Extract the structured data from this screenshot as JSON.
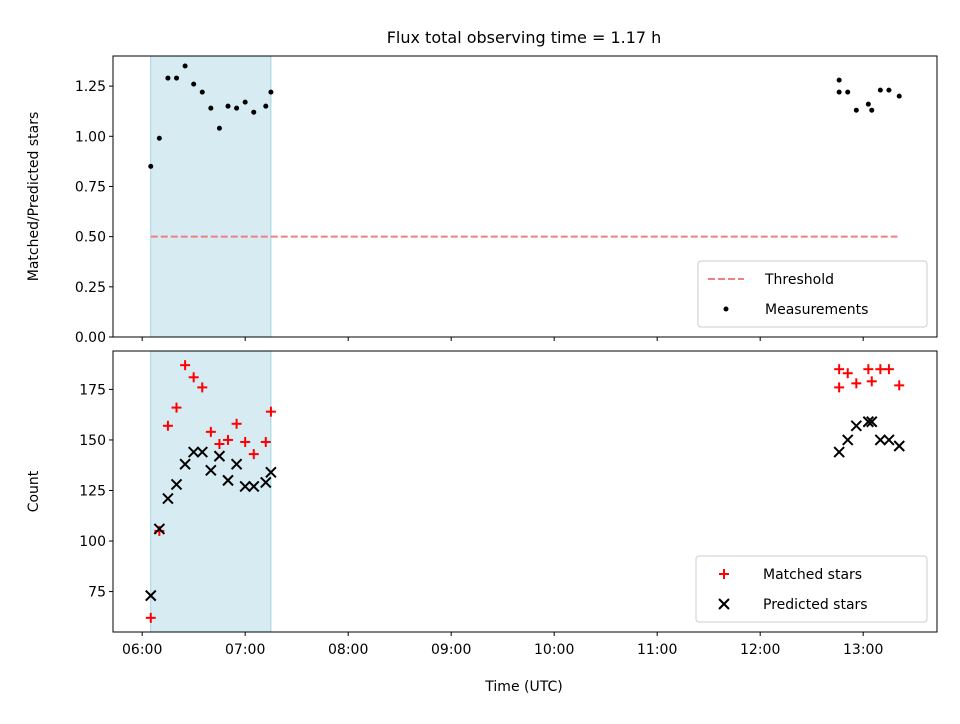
{
  "title": "Flux total observing time = 1.17 h",
  "xlabel": "Time (UTC)",
  "x_ticks": [
    "06:00",
    "07:00",
    "08:00",
    "09:00",
    "10:00",
    "11:00",
    "12:00",
    "13:00"
  ],
  "colors": {
    "threshold": "#f08080",
    "measurements": "#000000",
    "matched": "#ff0000",
    "predicted": "#000000",
    "shade": "#add8e6"
  },
  "chart_data": [
    {
      "type": "scatter",
      "ylabel": "Matched/Predicted stars",
      "xlim": [
        "05:43",
        "13:43"
      ],
      "ylim": [
        0,
        1.4
      ],
      "y_ticks": [
        "0.00",
        "0.25",
        "0.50",
        "0.75",
        "1.00",
        "1.25"
      ],
      "shaded_region": [
        "06:05",
        "07:15"
      ],
      "legend_position": "bottom-right",
      "threshold": {
        "name": "Threshold",
        "x": [
          "06:05",
          "13:20"
        ],
        "y": 0.5,
        "style": "dashed"
      },
      "series": [
        {
          "name": "Measurements",
          "points": [
            {
              "x": "06:05",
              "y": 0.85
            },
            {
              "x": "06:10",
              "y": 0.99
            },
            {
              "x": "06:15",
              "y": 1.29
            },
            {
              "x": "06:20",
              "y": 1.29
            },
            {
              "x": "06:25",
              "y": 1.35
            },
            {
              "x": "06:30",
              "y": 1.26
            },
            {
              "x": "06:35",
              "y": 1.22
            },
            {
              "x": "06:40",
              "y": 1.14
            },
            {
              "x": "06:45",
              "y": 1.04
            },
            {
              "x": "06:50",
              "y": 1.15
            },
            {
              "x": "06:55",
              "y": 1.14
            },
            {
              "x": "07:00",
              "y": 1.17
            },
            {
              "x": "07:05",
              "y": 1.12
            },
            {
              "x": "07:12",
              "y": 1.15
            },
            {
              "x": "07:15",
              "y": 1.22
            },
            {
              "x": "12:46",
              "y": 1.28
            },
            {
              "x": "12:46",
              "y": 1.22
            },
            {
              "x": "12:51",
              "y": 1.22
            },
            {
              "x": "12:56",
              "y": 1.13
            },
            {
              "x": "13:03",
              "y": 1.16
            },
            {
              "x": "13:05",
              "y": 1.13
            },
            {
              "x": "13:10",
              "y": 1.23
            },
            {
              "x": "13:15",
              "y": 1.23
            },
            {
              "x": "13:21",
              "y": 1.2
            }
          ]
        }
      ]
    },
    {
      "type": "scatter",
      "ylabel": "Count",
      "xlim": [
        "05:43",
        "13:43"
      ],
      "ylim": [
        55,
        194
      ],
      "y_ticks": [
        "75",
        "100",
        "125",
        "150",
        "175"
      ],
      "shaded_region": [
        "06:05",
        "07:15"
      ],
      "legend_position": "bottom-right",
      "series": [
        {
          "name": "Matched stars",
          "marker": "plus",
          "points": [
            {
              "x": "06:05",
              "y": 62
            },
            {
              "x": "06:10",
              "y": 105
            },
            {
              "x": "06:15",
              "y": 157
            },
            {
              "x": "06:20",
              "y": 166
            },
            {
              "x": "06:25",
              "y": 187
            },
            {
              "x": "06:30",
              "y": 181
            },
            {
              "x": "06:35",
              "y": 176
            },
            {
              "x": "06:40",
              "y": 154
            },
            {
              "x": "06:45",
              "y": 148
            },
            {
              "x": "06:50",
              "y": 150
            },
            {
              "x": "06:55",
              "y": 158
            },
            {
              "x": "07:00",
              "y": 149
            },
            {
              "x": "07:05",
              "y": 143
            },
            {
              "x": "07:12",
              "y": 149
            },
            {
              "x": "07:15",
              "y": 164
            },
            {
              "x": "12:46",
              "y": 185
            },
            {
              "x": "12:46",
              "y": 176
            },
            {
              "x": "12:51",
              "y": 183
            },
            {
              "x": "12:56",
              "y": 178
            },
            {
              "x": "13:03",
              "y": 185
            },
            {
              "x": "13:05",
              "y": 179
            },
            {
              "x": "13:10",
              "y": 185
            },
            {
              "x": "13:15",
              "y": 185
            },
            {
              "x": "13:21",
              "y": 177
            }
          ]
        },
        {
          "name": "Predicted stars",
          "marker": "x",
          "points": [
            {
              "x": "06:05",
              "y": 73
            },
            {
              "x": "06:10",
              "y": 106
            },
            {
              "x": "06:15",
              "y": 121
            },
            {
              "x": "06:20",
              "y": 128
            },
            {
              "x": "06:25",
              "y": 138
            },
            {
              "x": "06:30",
              "y": 144
            },
            {
              "x": "06:35",
              "y": 144
            },
            {
              "x": "06:40",
              "y": 135
            },
            {
              "x": "06:45",
              "y": 142
            },
            {
              "x": "06:50",
              "y": 130
            },
            {
              "x": "06:55",
              "y": 138
            },
            {
              "x": "07:00",
              "y": 127
            },
            {
              "x": "07:05",
              "y": 127
            },
            {
              "x": "07:12",
              "y": 129
            },
            {
              "x": "07:15",
              "y": 134
            },
            {
              "x": "12:46",
              "y": 144
            },
            {
              "x": "12:51",
              "y": 150
            },
            {
              "x": "12:56",
              "y": 157
            },
            {
              "x": "13:03",
              "y": 159
            },
            {
              "x": "13:05",
              "y": 159
            },
            {
              "x": "13:10",
              "y": 150
            },
            {
              "x": "13:15",
              "y": 150
            },
            {
              "x": "13:21",
              "y": 147
            }
          ]
        }
      ]
    }
  ]
}
